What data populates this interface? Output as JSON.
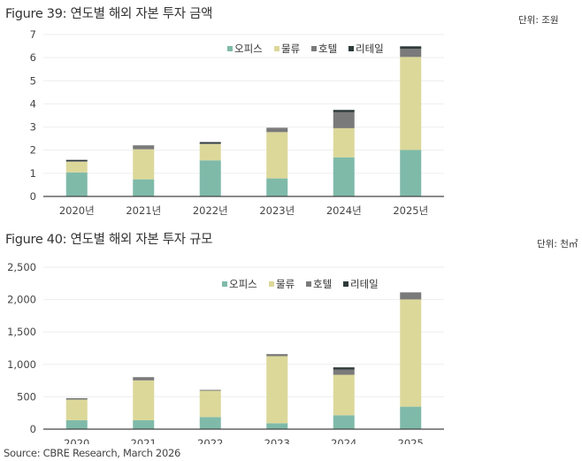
{
  "source": "Source: CBRE Research, March 2026",
  "chart_data": [
    {
      "type": "bar",
      "stacked": true,
      "title": "Figure 39: 연도별 해외 자본 투자 금액",
      "unit_label": "단위: 조원",
      "categories": [
        "2020년",
        "2021년",
        "2022년",
        "2023년",
        "2024년",
        "2025년"
      ],
      "ylim": [
        0,
        7
      ],
      "yticks": [
        "0",
        "1",
        "2",
        "3",
        "4",
        "5",
        "6",
        "7"
      ],
      "ytick_values": [
        0,
        1,
        2,
        3,
        4,
        5,
        6,
        7
      ],
      "grid": true,
      "legend_position": "top-center",
      "series": [
        {
          "name": "오피스",
          "color": "#7fbaa9",
          "values": [
            1.04,
            0.74,
            1.56,
            0.78,
            1.69,
            2.01
          ]
        },
        {
          "name": "물류",
          "color": "#dcd89a",
          "values": [
            0.46,
            1.3,
            0.71,
            2.0,
            1.26,
            4.02
          ]
        },
        {
          "name": "호텔",
          "color": "#7a7a7a",
          "values": [
            0.03,
            0.17,
            0.02,
            0.19,
            0.69,
            0.35
          ]
        },
        {
          "name": "리테일",
          "color": "#2e3a3a",
          "values": [
            0.05,
            0.0,
            0.06,
            0.0,
            0.1,
            0.11
          ]
        }
      ]
    },
    {
      "type": "bar",
      "stacked": true,
      "title": "Figure 40: 연도별 해외 자본 투자 규모",
      "unit_label": "단위: 천㎡",
      "categories": [
        "2020",
        "2021",
        "2022",
        "2023",
        "2024",
        "2025"
      ],
      "ylim": [
        0,
        2500
      ],
      "yticks": [
        "0",
        "500",
        "1,000",
        "1,500",
        "2,000",
        "2,500"
      ],
      "ytick_values": [
        0,
        500,
        1000,
        1500,
        2000,
        2500
      ],
      "grid": true,
      "legend_position": "top-center",
      "series": [
        {
          "name": "오피스",
          "color": "#7fbaa9",
          "values": [
            137,
            137,
            187,
            91,
            214,
            347
          ]
        },
        {
          "name": "물류",
          "color": "#dcd89a",
          "values": [
            319,
            616,
            406,
            1036,
            625,
            1656
          ]
        },
        {
          "name": "호텔",
          "color": "#7a7a7a",
          "values": [
            23,
            50,
            14,
            32,
            83,
            109
          ]
        },
        {
          "name": "리테일",
          "color": "#2e3a3a",
          "values": [
            0,
            0,
            0,
            0,
            32,
            0
          ]
        }
      ]
    }
  ]
}
